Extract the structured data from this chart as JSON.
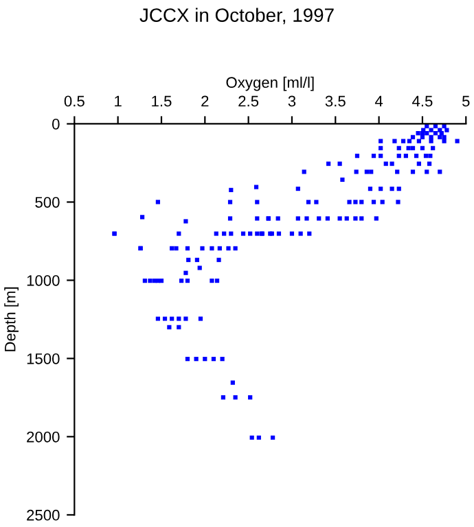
{
  "chart_data": {
    "type": "scatter",
    "title": "JCCX in October, 1997",
    "xlabel": "Oxygen [ml/l]",
    "ylabel": "Depth [m]",
    "xlim": [
      0.5,
      5
    ],
    "xticks": [
      0.5,
      1,
      1.5,
      2,
      2.5,
      3,
      3.5,
      4,
      4.5,
      5
    ],
    "ylim": [
      2500,
      0
    ],
    "yticks": [
      0,
      500,
      1000,
      1500,
      2000,
      2500
    ],
    "grid": false,
    "marker": "square",
    "series": [
      {
        "color": "#0000ff",
        "x": [
          1.46,
          1.28,
          0.96,
          1.26,
          2.3,
          2.59,
          2.29,
          2.6,
          1.78,
          2.29,
          2.6,
          2.73,
          0.96,
          1.7,
          2.13,
          2.22,
          2.3,
          2.44,
          2.52,
          2.6,
          2.66,
          2.77,
          1.26,
          1.62,
          1.67,
          1.8,
          1.97,
          2.08,
          2.17,
          2.27,
          2.35,
          1.81,
          1.91,
          2.16,
          1.94,
          1.78,
          1.31,
          1.37,
          1.42,
          1.46,
          1.5,
          1.73,
          1.8,
          2.08,
          2.14,
          1.46,
          1.54,
          1.62,
          1.7,
          1.78,
          1.95,
          1.59,
          1.7,
          1.8,
          1.9,
          2.0,
          2.1,
          2.2,
          2.32,
          2.21,
          2.35,
          2.52,
          2.54,
          2.62,
          2.78,
          2.65,
          2.75,
          2.85,
          3.0,
          3.1,
          3.2,
          2.73,
          2.84,
          3.07,
          3.17,
          3.31,
          3.41,
          3.55,
          3.63,
          3.73,
          3.8,
          3.97,
          3.19,
          3.28,
          3.66,
          3.73,
          3.8,
          3.94,
          4.04,
          4.22,
          3.07,
          3.9,
          4.02,
          4.15,
          4.23,
          3.58,
          3.14,
          3.74,
          3.86,
          3.91,
          4.21,
          4.39,
          4.55,
          4.7,
          3.42,
          3.55,
          4.08,
          4.15,
          4.46,
          4.58,
          3.75,
          3.94,
          4.02,
          4.23,
          4.31,
          4.43,
          4.54,
          4.59,
          4.02,
          4.23,
          4.34,
          4.39,
          4.5,
          4.62,
          4.02,
          4.18,
          4.28,
          4.35,
          4.46,
          4.6,
          4.75,
          4.9,
          4.39,
          4.5,
          4.6,
          4.7,
          4.75,
          4.45,
          4.55,
          4.65,
          4.72,
          4.51,
          4.6,
          4.7,
          4.78,
          4.55,
          4.65,
          4.75,
          4.5
        ],
        "values": [
          500,
          596,
          702,
          796,
          423,
          404,
          500,
          500,
          623,
          605,
          605,
          605,
          702,
          702,
          702,
          702,
          702,
          702,
          702,
          702,
          702,
          702,
          796,
          796,
          796,
          796,
          796,
          796,
          796,
          796,
          796,
          870,
          870,
          870,
          921,
          953,
          1003,
          1003,
          1003,
          1003,
          1003,
          1003,
          1003,
          1003,
          1003,
          1246,
          1246,
          1246,
          1246,
          1246,
          1246,
          1300,
          1300,
          1503,
          1503,
          1503,
          1503,
          1503,
          1655,
          1749,
          1749,
          1749,
          2006,
          2006,
          2006,
          702,
          702,
          702,
          702,
          702,
          702,
          605,
          605,
          605,
          605,
          605,
          605,
          605,
          605,
          605,
          605,
          605,
          500,
          500,
          500,
          500,
          500,
          500,
          500,
          500,
          415,
          415,
          415,
          415,
          415,
          357,
          307,
          307,
          307,
          307,
          307,
          307,
          307,
          307,
          255,
          255,
          255,
          255,
          255,
          255,
          205,
          205,
          205,
          205,
          205,
          205,
          205,
          205,
          155,
          155,
          155,
          155,
          155,
          155,
          110,
          110,
          110,
          110,
          110,
          110,
          110,
          110,
          85,
          85,
          85,
          85,
          85,
          60,
          60,
          60,
          60,
          40,
          40,
          40,
          40,
          15,
          15,
          15,
          60
        ]
      }
    ]
  }
}
